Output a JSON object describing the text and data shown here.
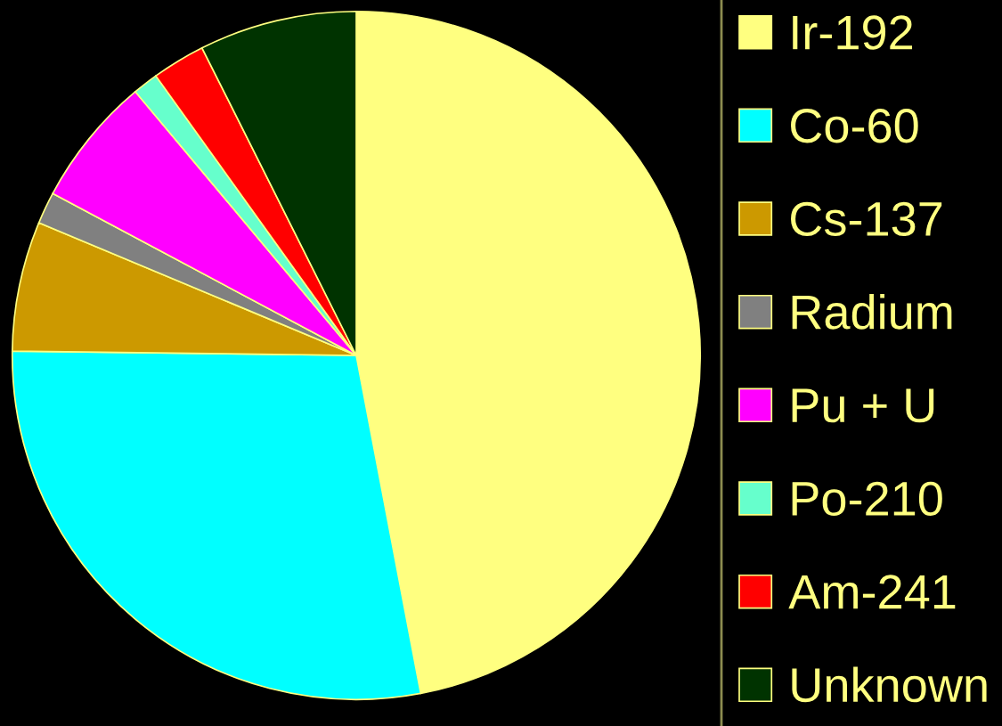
{
  "chart_data": {
    "type": "pie",
    "categories": [
      "Ir-192",
      "Co-60",
      "Cs-137",
      "Radium",
      "Pu + U",
      "Po-210",
      "Am-241",
      "Unknown"
    ],
    "values": [
      47.0,
      28.2,
      6.1,
      1.5,
      6.1,
      1.2,
      2.5,
      7.4
    ],
    "colors": [
      "#ffff80",
      "#00ffff",
      "#cc9900",
      "#808080",
      "#ff00ff",
      "#66ffcc",
      "#ff0000",
      "#003300"
    ],
    "legend": "right"
  }
}
